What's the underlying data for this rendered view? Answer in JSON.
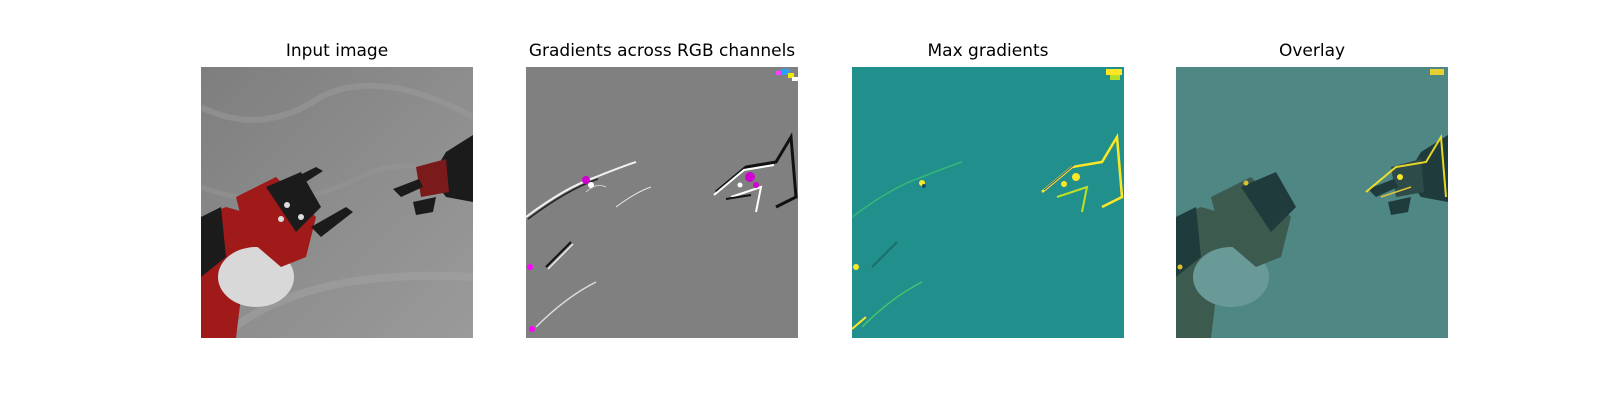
{
  "figure": {
    "panels": [
      {
        "title": "Input image",
        "kind": "photo"
      },
      {
        "title": "Gradients across RGB channels",
        "kind": "rgb-gradient"
      },
      {
        "title": "Max gradients",
        "kind": "max-gradient"
      },
      {
        "title": "Overlay",
        "kind": "overlay"
      }
    ]
  },
  "colors": {
    "background_wall": "#8a8a8a",
    "robot_red": "#a11a1a",
    "robot_black": "#1b1b1b",
    "gradient_gray": "#808080",
    "gradient_magenta": "#d000d0",
    "max_teal": "#21908c",
    "max_yellow": "#fde725",
    "overlay_teal": "#4f8785"
  }
}
